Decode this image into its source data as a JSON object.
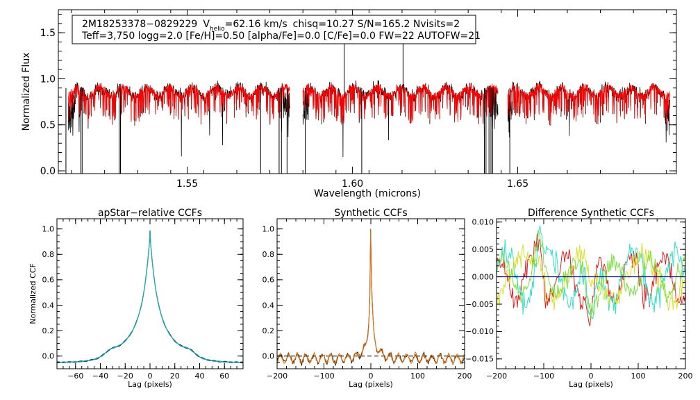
{
  "chart_data": [
    {
      "type": "line",
      "id": "spectrum",
      "xlabel": "Wavelength (microns)",
      "ylabel": "Normalized Flux",
      "xlim": [
        1.511,
        1.698
      ],
      "ylim": [
        -0.03,
        1.75
      ],
      "x_ticks": [
        "1.55",
        "1.60",
        "1.65"
      ],
      "x_tick_values": [
        1.55,
        1.6,
        1.65
      ],
      "y_ticks": [
        "0.0",
        "0.5",
        "1.0",
        "1.5"
      ],
      "y_tick_values": [
        0.0,
        0.5,
        1.0,
        1.5
      ],
      "legend": {
        "line1": {
          "star": "2M18253378−0829229",
          "v_prefix": "V",
          "v_sub": "helio",
          "v_rest": "=62.16 km/s",
          "rest": "chisq=10.27  S/N=165.2  Nvisits=2"
        },
        "line2": "Teff=3,750 logg=2.0 [Fe/H]=0.50 [alpha/Fe]=0.0 [C/Fe]=0.0 FW=22 AUTOFW=21"
      },
      "chips": [
        [
          1.514,
          1.581
        ],
        [
          1.585,
          1.644
        ],
        [
          1.647,
          1.696
        ]
      ],
      "series": [
        {
          "name": "observed",
          "color": "#000000"
        },
        {
          "name": "model",
          "color": "#ff0000"
        }
      ],
      "deep_lines": [
        1.5133,
        1.5178,
        1.5182,
        1.5294,
        1.5298,
        1.5722,
        1.5778,
        1.5785,
        1.5802,
        1.5857,
        1.6028,
        1.6399,
        1.6404,
        1.6413,
        1.6419,
        1.6424,
        1.6476
      ],
      "spikes": [
        [
          1.5975,
          1.4
        ],
        [
          1.6153,
          1.4
        ]
      ]
    },
    {
      "type": "line",
      "id": "apstar_ccf",
      "title": "apStar−relative CCFs",
      "xlabel": "Lag (pixels)",
      "ylabel": "Normalized CCF",
      "xlim": [
        -75,
        75
      ],
      "ylim": [
        -0.1,
        1.08
      ],
      "x_ticks": [
        "−60",
        "−40",
        "−20",
        "0",
        "20",
        "40",
        "60"
      ],
      "x_tick_values": [
        -60,
        -40,
        -20,
        0,
        20,
        40,
        60
      ],
      "y_ticks": [
        "0.0",
        "0.2",
        "0.4",
        "0.6",
        "0.8",
        "1.0"
      ],
      "y_tick_values": [
        0,
        0.2,
        0.4,
        0.6,
        0.8,
        1.0
      ],
      "peak": 0.99,
      "series": [
        {
          "name": "ccf-1",
          "color": "#1f3a6b"
        },
        {
          "name": "ccf-2",
          "color": "#20b2aa"
        }
      ]
    },
    {
      "type": "line",
      "id": "synthetic_ccf",
      "title": "Synthetic CCFs",
      "xlabel": "Lag (pixels)",
      "xlim": [
        -200,
        200
      ],
      "ylim": [
        -0.1,
        1.08
      ],
      "x_ticks": [
        "−200",
        "−100",
        "0",
        "100",
        "200"
      ],
      "x_tick_values": [
        -200,
        -100,
        0,
        100,
        200
      ],
      "y_ticks": [
        "0.0",
        "0.2",
        "0.4",
        "0.6",
        "0.8",
        "1.0"
      ],
      "y_tick_values": [
        0,
        0.2,
        0.4,
        0.6,
        0.8,
        1.0
      ],
      "peak": 1.0,
      "baseline": 0.0,
      "series": [
        {
          "name": "ccf-a",
          "color": "#3a2a10"
        },
        {
          "name": "ccf-b",
          "color": "#e07010"
        }
      ]
    },
    {
      "type": "line",
      "id": "diff_ccf",
      "title": "Difference Synthetic CCFs",
      "xlabel": "Lag (pixels)",
      "xlim": [
        -200,
        200
      ],
      "ylim": [
        -0.0168,
        0.0106
      ],
      "x_ticks": [
        "−200",
        "−100",
        "0",
        "100",
        "200"
      ],
      "x_tick_values": [
        -200,
        -100,
        0,
        100,
        200
      ],
      "y_ticks": [
        "0.010",
        "0.005",
        "0.000",
        "−0.005",
        "−0.010",
        "−0.015"
      ],
      "y_tick_values": [
        0.01,
        0.005,
        0.0,
        -0.005,
        -0.01,
        -0.015
      ],
      "zero_line": {
        "value": 0.0,
        "color": "#000080"
      },
      "series": [
        {
          "name": "diff-red",
          "color": "#e02020"
        },
        {
          "name": "diff-cyan",
          "color": "#30e0c8"
        },
        {
          "name": "diff-yellow",
          "color": "#d8e030"
        },
        {
          "name": "diff-green",
          "color": "#7ae040"
        }
      ]
    }
  ]
}
